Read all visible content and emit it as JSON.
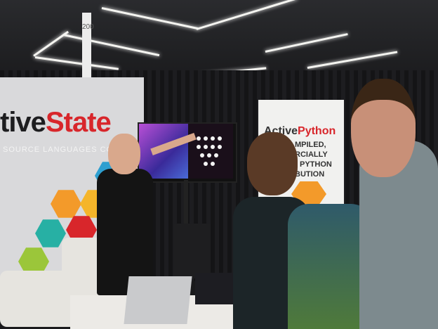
{
  "scene": {
    "left_banner": {
      "logo_dark": "tive",
      "logo_red": "State",
      "tagline": "SOURCE LANGUAGES COM",
      "hex_colors": [
        "#2e9fd0",
        "#f39a2a",
        "#f5b52a",
        "#d8262b",
        "#27b0a4",
        "#9bc63a"
      ]
    },
    "right_banner": {
      "logo_dark": "Active",
      "logo_red": "Python",
      "lines": [
        "MPILED,",
        "RCIALLY",
        "D PYTHON",
        "BUTION"
      ]
    },
    "booth_sign": "200",
    "brand_red": "#d8262b"
  }
}
